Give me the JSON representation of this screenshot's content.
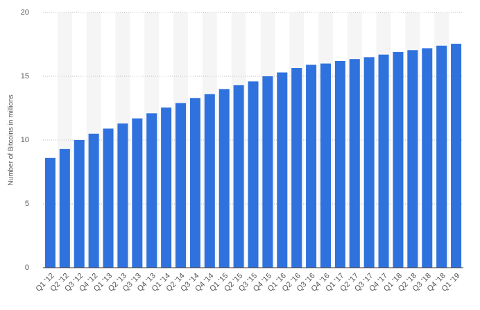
{
  "chart_data": {
    "type": "bar",
    "y_label": "Number of Bitcoins in millions",
    "categories": [
      "Q1 '12",
      "Q2 '12",
      "Q3 '12",
      "Q4 '12",
      "Q1 '13",
      "Q2 '13",
      "Q3 '13",
      "Q4 '13",
      "Q1 '14",
      "Q2 '14",
      "Q3 '14",
      "Q4 '14",
      "Q1 '15",
      "Q2 '15",
      "Q3 '15",
      "Q4 '15",
      "Q1 '16",
      "Q2 '16",
      "Q3 '16",
      "Q4 '16",
      "Q1 '17",
      "Q2 '17",
      "Q3 '17",
      "Q4 '17",
      "Q1 '18",
      "Q2 '18",
      "Q3 '18",
      "Q4 '18",
      "Q1 '19"
    ],
    "values": [
      8.6,
      9.3,
      10.0,
      10.5,
      10.9,
      11.3,
      11.7,
      12.1,
      12.55,
      12.9,
      13.3,
      13.6,
      14.0,
      14.3,
      14.6,
      15.0,
      15.3,
      15.65,
      15.9,
      16.0,
      16.2,
      16.35,
      16.5,
      16.7,
      16.9,
      17.05,
      17.2,
      17.4,
      17.55
    ],
    "color": "#2f72de",
    "ylim": [
      0,
      20
    ],
    "yticks": [
      0,
      5,
      10,
      15,
      20
    ],
    "grid": true
  }
}
